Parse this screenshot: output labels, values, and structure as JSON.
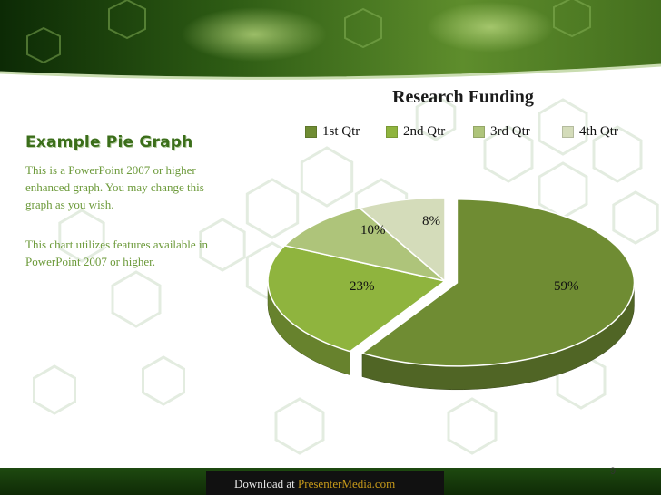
{
  "slide": {
    "title": "Example Pie Graph",
    "paragraphs": [
      "This is a PowerPoint 2007 or higher enhanced graph.  You may change this graph as you wish.",
      "This chart utilizes features available in PowerPoint 2007 or higher."
    ],
    "page_number": "9"
  },
  "footer": {
    "prefix": "Download at ",
    "link_text": "PresenterMedia.com"
  },
  "colors": {
    "title": "#3b6e1a",
    "body_text": "#6c9a3a",
    "link": "#c79a1a",
    "header_dark": "#123a08",
    "header_light": "#6a9a38"
  },
  "chart_data": {
    "type": "pie",
    "title": "Research Funding",
    "categories": [
      "1st Qtr",
      "2nd Qtr",
      "3rd Qtr",
      "4th Qtr"
    ],
    "values": [
      59,
      23,
      10,
      8
    ],
    "data_labels": [
      "59%",
      "23%",
      "10%",
      "8%"
    ],
    "colors": [
      "#6f8c33",
      "#8fb43e",
      "#aec47a",
      "#d4dcba"
    ],
    "legend_position": "top",
    "exploded_slice": "1st Qtr",
    "style": "3d"
  }
}
